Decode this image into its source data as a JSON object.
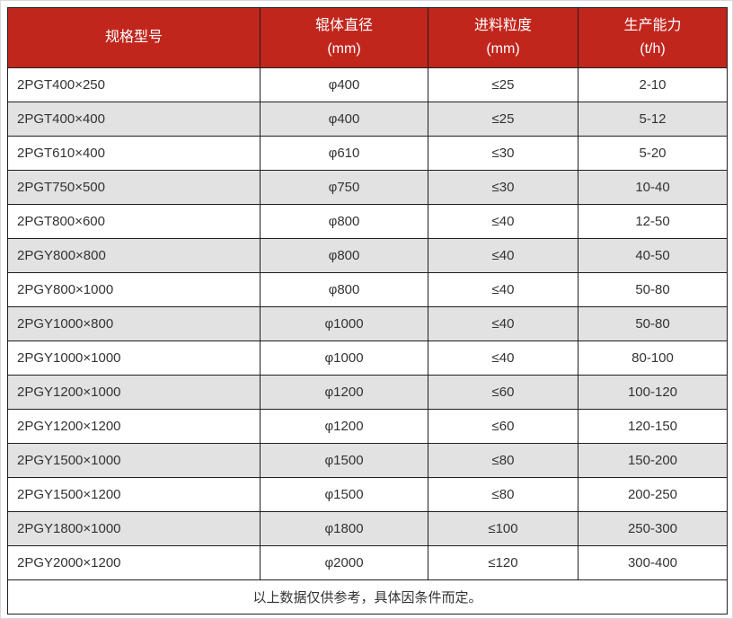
{
  "theme": {
    "header_bg": "#c1261d",
    "header_text": "#ffffff",
    "row_bg": "#ffffff",
    "row_alt_bg": "#e2e2e2",
    "border_color": "#1f1f1f",
    "cell_text": "#333333",
    "frame_color": "#d9d9d9"
  },
  "table": {
    "columns": [
      {
        "label": "规格型号",
        "unit": ""
      },
      {
        "label": "辊体直径",
        "unit": "(mm)"
      },
      {
        "label": "进料粒度",
        "unit": "(mm)"
      },
      {
        "label": "生产能力",
        "unit": "(t/h)"
      }
    ],
    "rows": [
      [
        "2PGT400×250",
        "φ400",
        "≤25",
        "2-10"
      ],
      [
        "2PGT400×400",
        "φ400",
        "≤25",
        "5-12"
      ],
      [
        "2PGT610×400",
        "φ610",
        "≤30",
        "5-20"
      ],
      [
        "2PGT750×500",
        "φ750",
        "≤30",
        "10-40"
      ],
      [
        "2PGT800×600",
        "φ800",
        "≤40",
        "12-50"
      ],
      [
        "2PGY800×800",
        "φ800",
        "≤40",
        "40-50"
      ],
      [
        "2PGY800×1000",
        "φ800",
        "≤40",
        "50-80"
      ],
      [
        "2PGY1000×800",
        "φ1000",
        "≤40",
        "50-80"
      ],
      [
        "2PGY1000×1000",
        "φ1000",
        "≤40",
        "80-100"
      ],
      [
        "2PGY1200×1000",
        "φ1200",
        "≤60",
        "100-120"
      ],
      [
        "2PGY1200×1200",
        "φ1200",
        "≤60",
        "120-150"
      ],
      [
        "2PGY1500×1000",
        "φ1500",
        "≤80",
        "150-200"
      ],
      [
        "2PGY1500×1200",
        "φ1500",
        "≤80",
        "200-250"
      ],
      [
        "2PGY1800×1000",
        "φ1800",
        "≤100",
        "250-300"
      ],
      [
        "2PGY2000×1200",
        "φ2000",
        "≤120",
        "300-400"
      ]
    ],
    "footnote": "以上数据仅供参考，具体因条件而定。"
  }
}
